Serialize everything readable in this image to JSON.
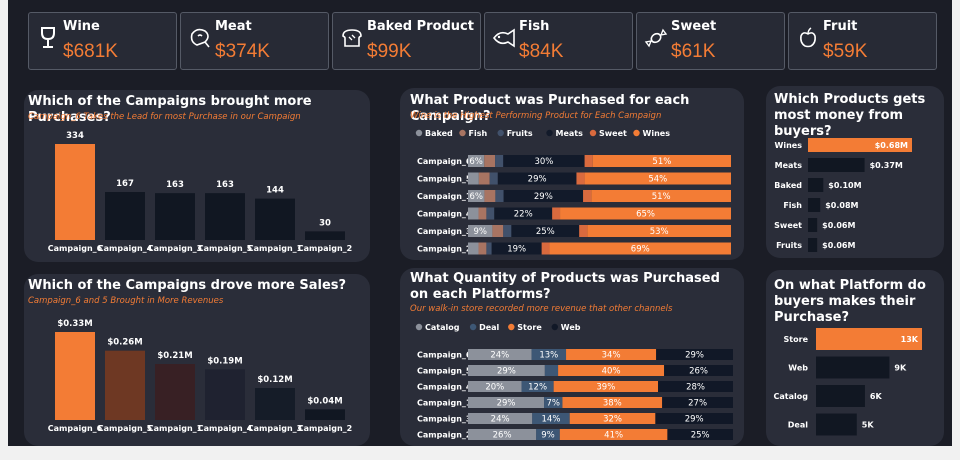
{
  "kpis": [
    {
      "label": "Wine",
      "value": "$681K",
      "icon": "wine-glass-icon"
    },
    {
      "label": "Meat",
      "value": "$374K",
      "icon": "meat-icon"
    },
    {
      "label": "Baked Product",
      "value": "$99K",
      "icon": "bread-icon"
    },
    {
      "label": "Fish",
      "value": "$84K",
      "icon": "fish-icon"
    },
    {
      "label": "Sweet",
      "value": "$61K",
      "icon": "candy-icon"
    },
    {
      "label": "Fruit",
      "value": "$59K",
      "icon": "apple-icon"
    }
  ],
  "colors": {
    "accent": "#f37c35",
    "dark": "#1b1d26",
    "panel": "#2a2d39",
    "bar_dark": "#101620"
  },
  "chart_data": [
    {
      "id": "purchases",
      "type": "bar",
      "title": "Which of the Campaigns brought more Purchases?",
      "subtitle": "Campaign_6 Takes the Lead for most Purchase in our Campaign",
      "categories": [
        "Campaign_6",
        "Campaign_4",
        "Campaign_3",
        "Campaign_5",
        "Campaign_1",
        "Campaign_2"
      ],
      "values": [
        334,
        167,
        163,
        163,
        144,
        30
      ],
      "data_labels": [
        "334",
        "167",
        "163",
        "163",
        "144",
        "30"
      ],
      "bar_colors": [
        "#f37c35",
        "#111722",
        "#111722",
        "#111722",
        "#111722",
        "#111722"
      ]
    },
    {
      "id": "sales",
      "type": "bar",
      "title": "Which of the Campaigns drove more Sales?",
      "subtitle": "Campaign_6 and 5 Brought in More Revenues",
      "categories": [
        "Campaign_6",
        "Campaign_5",
        "Campaign_1",
        "Campaign_4",
        "Campaign_3",
        "Campaign_2"
      ],
      "values": [
        0.33,
        0.26,
        0.21,
        0.19,
        0.12,
        0.04
      ],
      "data_labels": [
        "$0.33M",
        "$0.26M",
        "$0.21M",
        "$0.19M",
        "$0.12M",
        "$0.04M"
      ],
      "bar_colors": [
        "#f37c35",
        "#6e3823",
        "#382024",
        "#1f2230",
        "#151c28",
        "#111722"
      ]
    },
    {
      "id": "product_campaign",
      "type": "bar",
      "stacked": true,
      "orientation": "horizontal",
      "title": "What Product was Purchased for each Campaign?",
      "subtitle": "Wine is the Highest Performing Product for Each Campaign",
      "categories": [
        "Campaign_6",
        "Campaign_5",
        "Campaign_1",
        "Campaign_4",
        "Campaign_3",
        "Campaign_2"
      ],
      "series": [
        {
          "name": "Baked",
          "color": "#8c919b",
          "values": [
            6,
            4,
            6,
            4,
            9,
            4
          ],
          "labels": [
            "6%",
            "",
            "6%",
            "",
            "9%",
            ""
          ]
        },
        {
          "name": "Fish",
          "color": "#a87462",
          "values": [
            4,
            4,
            4,
            3,
            4,
            3
          ],
          "labels": [
            "",
            "",
            "",
            "",
            "",
            ""
          ]
        },
        {
          "name": "Fruits",
          "color": "#41516b",
          "values": [
            3,
            3,
            3,
            3,
            3,
            2
          ],
          "labels": [
            "",
            "",
            "",
            "",
            "",
            ""
          ]
        },
        {
          "name": "Meats",
          "color": "#121a2a",
          "values": [
            30,
            29,
            29,
            22,
            25,
            19
          ],
          "labels": [
            "30%",
            "29%",
            "29%",
            "22%",
            "25%",
            "19%"
          ]
        },
        {
          "name": "Sweet",
          "color": "#d96a3e",
          "values": [
            3,
            3,
            3,
            3,
            3,
            3
          ],
          "labels": [
            "",
            "",
            "",
            "",
            "",
            ""
          ]
        },
        {
          "name": "Wines",
          "color": "#f37c35",
          "values": [
            51,
            54,
            51,
            65,
            53,
            69
          ],
          "labels": [
            "51%",
            "54%",
            "51%",
            "65%",
            "53%",
            "69%"
          ]
        }
      ]
    },
    {
      "id": "quantity_platform",
      "type": "bar",
      "stacked": true,
      "orientation": "horizontal",
      "title": "What Quantity of Products was Purchased on each Platforms?",
      "subtitle": "Our walk-in store recorded more revenue that other channels",
      "categories": [
        "Campaign_6",
        "Campaign_5",
        "Campaign_4",
        "Campaign_1",
        "Campaign_3",
        "Campaign_2"
      ],
      "series": [
        {
          "name": "Catalog",
          "color": "#8c919b",
          "values": [
            24,
            29,
            20,
            29,
            24,
            26
          ],
          "labels": [
            "24%",
            "29%",
            "20%",
            "29%",
            "24%",
            "26%"
          ]
        },
        {
          "name": "Deal",
          "color": "#3d5775",
          "values": [
            13,
            5,
            12,
            7,
            14,
            9
          ],
          "labels": [
            "13%",
            "",
            "12%",
            "7%",
            "14%",
            "9%"
          ]
        },
        {
          "name": "Store",
          "color": "#f37c35",
          "values": [
            34,
            40,
            39,
            38,
            32,
            41
          ],
          "labels": [
            "34%",
            "40%",
            "39%",
            "38%",
            "32%",
            "41%"
          ]
        },
        {
          "name": "Web",
          "color": "#111827",
          "values": [
            29,
            26,
            28,
            27,
            29,
            25
          ],
          "labels": [
            "29%",
            "26%",
            "28%",
            "27%",
            "29%",
            "25%"
          ]
        }
      ]
    },
    {
      "id": "product_money",
      "type": "bar",
      "orientation": "horizontal",
      "title": "Which Products gets most money from buyers?",
      "categories": [
        "Wines",
        "Meats",
        "Baked",
        "Fish",
        "Sweet",
        "Fruits"
      ],
      "values": [
        0.68,
        0.37,
        0.1,
        0.08,
        0.06,
        0.06
      ],
      "data_labels": [
        "$0.68M",
        "$0.37M",
        "$0.10M",
        "$0.08M",
        "$0.06M",
        "$0.06M"
      ],
      "bar_colors": [
        "#f37c35",
        "#111722",
        "#111722",
        "#111722",
        "#111722",
        "#111722"
      ]
    },
    {
      "id": "platform",
      "type": "bar",
      "orientation": "horizontal",
      "title": "On what Platform do buyers makes their Purchase?",
      "categories": [
        "Store",
        "Web",
        "Catalog",
        "Deal"
      ],
      "values": [
        13,
        9,
        6,
        5
      ],
      "data_labels": [
        "13K",
        "9K",
        "6K",
        "5K"
      ],
      "bar_colors": [
        "#f37c35",
        "#111722",
        "#111722",
        "#111722"
      ]
    }
  ]
}
